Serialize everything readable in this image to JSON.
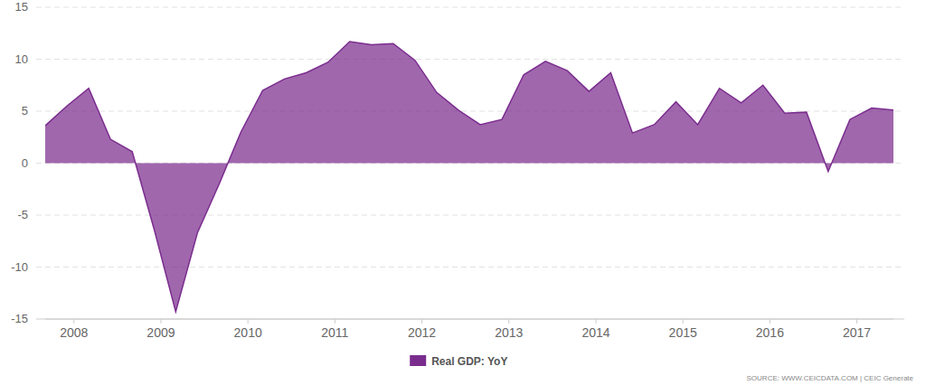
{
  "chart_data": {
    "type": "area",
    "annotations": [
      "SOURCE: WWW.CEICDATA.COM | CEIC Generate"
    ],
    "x": [
      2007.67,
      2007.92,
      2008.17,
      2008.42,
      2008.67,
      2008.92,
      2009.17,
      2009.42,
      2009.67,
      2009.92,
      2010.17,
      2010.42,
      2010.67,
      2010.92,
      2011.17,
      2011.42,
      2011.67,
      2011.92,
      2012.17,
      2012.42,
      2012.67,
      2012.92,
      2013.17,
      2013.42,
      2013.67,
      2013.92,
      2014.17,
      2014.42,
      2014.67,
      2014.92,
      2015.17,
      2015.42,
      2015.67,
      2015.92,
      2016.17,
      2016.42,
      2016.67,
      2016.92,
      2017.17,
      2017.42
    ],
    "series": [
      {
        "name": "Real GDP: YoY",
        "color": "#7b2d8e",
        "values": [
          3.6,
          5.5,
          7.2,
          2.3,
          1.1,
          -6.3,
          -14.3,
          -6.7,
          -2.0,
          3.0,
          7.0,
          8.1,
          8.7,
          9.7,
          11.7,
          11.4,
          11.5,
          9.9,
          6.8,
          5.1,
          3.7,
          4.2,
          8.5,
          9.8,
          8.9,
          6.9,
          8.7,
          2.9,
          3.7,
          5.9,
          3.7,
          7.2,
          5.8,
          7.5,
          4.8,
          4.9,
          -0.8,
          4.2,
          5.3,
          5.1
        ]
      }
    ],
    "xlim": [
      2007.67,
      2017.42
    ],
    "xticks": [
      2008,
      2009,
      2010,
      2011,
      2012,
      2013,
      2014,
      2015,
      2016,
      2017
    ],
    "ylim": [
      -15,
      15
    ],
    "yticks": [
      -15,
      -10,
      -5,
      0,
      5,
      10,
      15
    ],
    "grid": true,
    "legend": "bottom"
  }
}
